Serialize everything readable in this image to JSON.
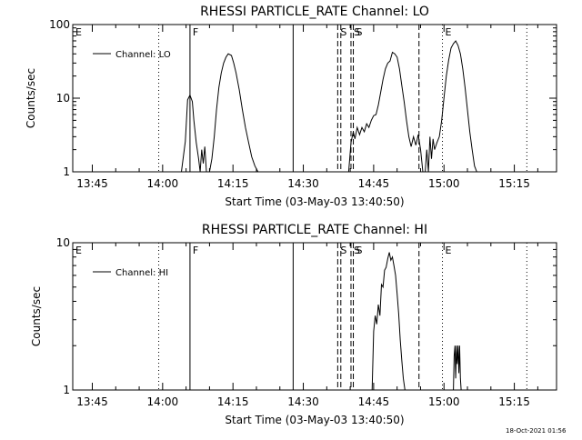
{
  "chart_data": [
    {
      "type": "line",
      "title": "RHESSI PARTICLE_RATE Channel: LO",
      "xlabel": "Start Time (03-May-03 13:40:50)",
      "ylabel": "Counts/sec",
      "y_scale": "log",
      "ylim": [
        1,
        100
      ],
      "xlim": [
        "13:40:50",
        "15:24:00"
      ],
      "x_ticks": [
        "13:45",
        "14:00",
        "14:15",
        "14:30",
        "14:45",
        "15:00",
        "15:15"
      ],
      "y_ticks": [
        "1",
        "10",
        "100"
      ],
      "legend": {
        "position": "top-left",
        "entries": [
          "Channel: LO"
        ]
      },
      "series": [
        {
          "name": "Channel: LO",
          "x": [
            "14:04:00",
            "14:04:50",
            "14:05:20",
            "14:05:50",
            "14:06:20",
            "14:06:40",
            "14:07:10",
            "14:07:40",
            "14:08:00",
            "14:08:20",
            "14:08:40",
            "14:09:00",
            "14:09:20",
            "14:10:00",
            "14:10:30",
            "14:11:00",
            "14:11:30",
            "14:12:00",
            "14:12:30",
            "14:13:00",
            "14:13:30",
            "14:14:00",
            "14:14:40",
            "14:15:10",
            "14:15:40",
            "14:16:20",
            "14:17:00",
            "14:17:40",
            "14:18:20",
            "14:19:00",
            "14:19:40",
            "14:20:20",
            "14:21:00",
            "14:21:30"
          ],
          "y": [
            1,
            2.6,
            9.5,
            11,
            9,
            5,
            2.5,
            1.5,
            1,
            2,
            1.3,
            2.2,
            1,
            1,
            1.5,
            3,
            7,
            14,
            22,
            30,
            36,
            40,
            38,
            30,
            22,
            13,
            7,
            4,
            2.5,
            1.6,
            1.2,
            1,
            1,
            1
          ],
          "style": "solid"
        },
        {
          "name": "Channel: LO",
          "x": [
            "14:39:40",
            "14:40:10",
            "14:40:40",
            "14:41:00",
            "14:41:30",
            "14:42:00",
            "14:42:30",
            "14:43:00",
            "14:43:30",
            "14:44:00",
            "14:44:30",
            "14:45:00",
            "14:45:30",
            "14:46:00",
            "14:46:30",
            "14:47:00",
            "14:47:30",
            "14:48:00",
            "14:48:30",
            "14:49:00",
            "14:49:30",
            "14:50:00",
            "14:50:30",
            "14:51:00",
            "14:51:30",
            "14:52:00",
            "14:52:30",
            "14:53:00",
            "14:53:30",
            "14:54:00",
            "14:54:30",
            "14:55:00",
            "14:55:30",
            "14:56:00",
            "14:56:20",
            "14:56:40",
            "14:57:00",
            "14:57:20",
            "14:57:40",
            "14:58:00",
            "14:58:30",
            "14:59:00",
            "14:59:30",
            "15:00:00",
            "15:00:30",
            "15:01:00",
            "15:01:30",
            "15:02:00",
            "15:02:30",
            "15:03:00",
            "15:03:30",
            "15:04:00",
            "15:04:30",
            "15:05:00",
            "15:05:30",
            "15:06:00",
            "15:06:30",
            "15:07:00"
          ],
          "y": [
            1,
            2.5,
            3.5,
            2.8,
            4,
            3.2,
            4,
            3.5,
            4.5,
            4,
            5,
            5.8,
            6,
            8,
            12,
            18,
            25,
            30,
            32,
            42,
            40,
            36,
            25,
            15,
            9,
            5,
            3,
            2.2,
            3,
            2.3,
            3.2,
            2,
            1,
            1,
            2,
            1,
            3,
            1.5,
            2.8,
            2,
            2.5,
            3,
            5,
            10,
            20,
            33,
            48,
            55,
            60,
            52,
            40,
            25,
            14,
            7,
            3.5,
            2,
            1.2,
            1
          ],
          "style": "solid"
        }
      ],
      "event_markers": [
        {
          "time": "13:40:50",
          "label": "E",
          "style": "dotted"
        },
        {
          "time": "13:59:10",
          "label": "",
          "style": "dotted"
        },
        {
          "time": "14:05:50",
          "label": "F",
          "style": "solid"
        },
        {
          "time": "14:27:50",
          "label": "",
          "style": "solid"
        },
        {
          "time": "14:37:20",
          "label": "S",
          "style": "dashed"
        },
        {
          "time": "14:38:00",
          "label": "",
          "style": "dashed"
        },
        {
          "time": "14:40:10",
          "label": "S",
          "style": "dashed"
        },
        {
          "time": "14:40:40",
          "label": "S",
          "style": "dashed"
        },
        {
          "time": "14:54:40",
          "label": "",
          "style": "dashed"
        },
        {
          "time": "14:59:40",
          "label": "E",
          "style": "dotted"
        },
        {
          "time": "15:17:40",
          "label": "",
          "style": "dotted"
        }
      ]
    },
    {
      "type": "line",
      "title": "RHESSI PARTICLE_RATE Channel: HI",
      "xlabel": "Start Time (03-May-03 13:40:50)",
      "ylabel": "Counts/sec",
      "y_scale": "log",
      "ylim": [
        1,
        10
      ],
      "xlim": [
        "13:40:50",
        "15:24:00"
      ],
      "x_ticks": [
        "13:45",
        "14:00",
        "14:15",
        "14:30",
        "14:45",
        "15:00",
        "15:15"
      ],
      "y_ticks": [
        "1",
        "10"
      ],
      "legend": {
        "position": "top-left",
        "entries": [
          "Channel: HI"
        ]
      },
      "series": [
        {
          "name": "Channel: HI",
          "x": [
            "14:44:40",
            "14:45:00",
            "14:45:20",
            "14:45:40",
            "14:46:00",
            "14:46:20",
            "14:46:40",
            "14:47:00",
            "14:47:20",
            "14:47:40",
            "14:48:00",
            "14:48:20",
            "14:48:40",
            "14:49:00",
            "14:49:20",
            "14:49:40",
            "14:50:00",
            "14:50:20",
            "14:50:40",
            "14:51:00",
            "14:51:20",
            "14:51:40",
            "14:52:00"
          ],
          "y": [
            1,
            2.5,
            3.2,
            2.8,
            3.8,
            3.2,
            5.2,
            5,
            6.5,
            6.8,
            7.8,
            8.6,
            7.6,
            8,
            7,
            6,
            4.5,
            3.3,
            2.2,
            1.6,
            1.2,
            1,
            1
          ],
          "style": "solid"
        },
        {
          "name": "Channel: HI",
          "x": [
            "15:02:00",
            "15:02:10",
            "15:02:20",
            "15:02:30",
            "15:02:40",
            "15:02:50",
            "15:03:00",
            "15:03:10",
            "15:03:20",
            "15:03:30",
            "15:03:40"
          ],
          "y": [
            1,
            1.7,
            2,
            1.2,
            2,
            1.5,
            2,
            1.3,
            2,
            1.2,
            1
          ],
          "style": "solid"
        }
      ],
      "event_markers": [
        {
          "time": "13:40:50",
          "label": "E",
          "style": "dotted"
        },
        {
          "time": "13:59:10",
          "label": "",
          "style": "dotted"
        },
        {
          "time": "14:05:50",
          "label": "F",
          "style": "solid"
        },
        {
          "time": "14:27:50",
          "label": "",
          "style": "solid"
        },
        {
          "time": "14:37:20",
          "label": "S",
          "style": "dashed"
        },
        {
          "time": "14:38:00",
          "label": "",
          "style": "dashed"
        },
        {
          "time": "14:40:10",
          "label": "S",
          "style": "dashed"
        },
        {
          "time": "14:40:40",
          "label": "S",
          "style": "dashed"
        },
        {
          "time": "14:54:40",
          "label": "",
          "style": "dashed"
        },
        {
          "time": "14:59:40",
          "label": "E",
          "style": "dotted"
        },
        {
          "time": "15:17:40",
          "label": "",
          "style": "dotted"
        }
      ]
    }
  ],
  "footer_timestamp": "18-Oct-2021 01:56"
}
